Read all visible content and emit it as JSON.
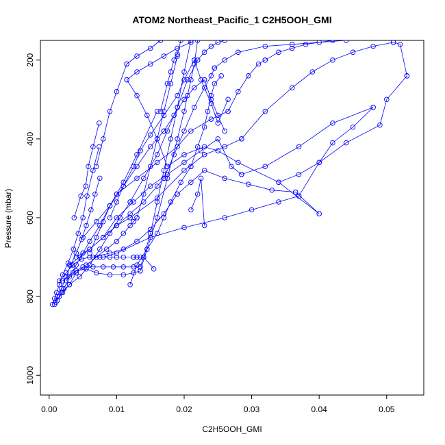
{
  "chart_data": {
    "type": "line",
    "title": "ATOM2 Northeast_Pacific_1 C2H5OOH_GMI",
    "xlabel": "C2H5OOH_GMI",
    "ylabel": "Pressure (mbar)",
    "xlim": [
      -0.0013,
      0.0555
    ],
    "ylim": [
      1050,
      150
    ],
    "y_inverted": true,
    "x_ticks": [
      0.0,
      0.01,
      0.02,
      0.03,
      0.04,
      0.05
    ],
    "x_tick_labels": [
      "0.00",
      "0.01",
      "0.02",
      "0.03",
      "0.04",
      "0.05"
    ],
    "y_ticks": [
      200,
      400,
      600,
      800,
      1000
    ],
    "y_tick_labels": [
      "200",
      "400",
      "600",
      "800",
      "1000"
    ],
    "series_color": "#0000ff",
    "marker": "open-circle",
    "grid": false,
    "legend": "none",
    "series": [
      {
        "x": [
          0.0005,
          0.0008,
          0.0011,
          0.0015,
          0.002,
          0.0028,
          0.0036,
          0.0043,
          0.005,
          0.0056,
          0.0065,
          0.0074
        ],
        "y": [
          820,
          805,
          790,
          770,
          745,
          715,
          680,
          640,
          600,
          545,
          480,
          420
        ]
      },
      {
        "x": [
          0.0074,
          0.0065,
          0.0058,
          0.0054,
          0.0047,
          0.0037
        ],
        "y": [
          360,
          420,
          470,
          520,
          545,
          600
        ]
      },
      {
        "x": [
          0.0008,
          0.0012,
          0.0018,
          0.0025,
          0.0032,
          0.004,
          0.0048,
          0.0055,
          0.0062,
          0.0068,
          0.0075
        ],
        "y": [
          820,
          800,
          780,
          750,
          720,
          690,
          655,
          620,
          580,
          540,
          500
        ]
      },
      {
        "x": [
          0.001,
          0.0015,
          0.0022,
          0.003,
          0.004,
          0.005,
          0.006,
          0.0075,
          0.009,
          0.011,
          0.013,
          0.016
        ],
        "y": [
          815,
          800,
          780,
          750,
          720,
          690,
          660,
          620,
          570,
          510,
          440,
          330
        ]
      },
      {
        "x": [
          0.0165,
          0.0175,
          0.018,
          0.0185,
          0.019,
          0.0195
        ],
        "y": [
          330,
          260,
          230,
          200,
          185,
          150
        ]
      },
      {
        "x": [
          0.0012,
          0.002,
          0.003,
          0.004,
          0.0055,
          0.007,
          0.0085,
          0.01,
          0.011,
          0.012,
          0.0125,
          0.013
        ],
        "y": [
          810,
          790,
          770,
          740,
          720,
          700,
          680,
          660,
          640,
          620,
          610,
          600
        ]
      },
      {
        "x": [
          0.013,
          0.014,
          0.015,
          0.016,
          0.017,
          0.018,
          0.019
        ],
        "y": [
          600,
          540,
          470,
          400,
          330,
          260,
          190
        ]
      },
      {
        "x": [
          0.0015,
          0.0025,
          0.0035,
          0.0048,
          0.006,
          0.0075,
          0.009,
          0.01,
          0.011,
          0.0125
        ],
        "y": [
          760,
          740,
          720,
          705,
          700,
          700,
          700,
          700,
          700,
          700
        ]
      },
      {
        "x": [
          0.0125,
          0.013,
          0.0135,
          0.014,
          0.0155
        ],
        "y": [
          700,
          700,
          700,
          700,
          730
        ]
      },
      {
        "x": [
          0.002,
          0.0035,
          0.005,
          0.0065,
          0.008,
          0.0095,
          0.011,
          0.0125,
          0.0135
        ],
        "y": [
          760,
          740,
          725,
          725,
          725,
          725,
          725,
          725,
          725
        ]
      },
      {
        "x": [
          0.0135,
          0.014,
          0.015,
          0.016,
          0.017,
          0.018,
          0.019,
          0.02,
          0.021
        ],
        "y": [
          725,
          700,
          640,
          560,
          480,
          400,
          320,
          230,
          150
        ]
      },
      {
        "x": [
          0.0025,
          0.004,
          0.0055,
          0.007,
          0.009,
          0.011,
          0.0125,
          0.0135
        ],
        "y": [
          760,
          735,
          730,
          740,
          745,
          745,
          740,
          735
        ]
      },
      {
        "x": [
          0.0135,
          0.0145,
          0.016,
          0.0175,
          0.019,
          0.02,
          0.0205,
          0.021,
          0.0215,
          0.022
        ],
        "y": [
          735,
          680,
          600,
          500,
          400,
          330,
          290,
          250,
          210,
          150
        ]
      },
      {
        "x": [
          0.0018,
          0.003,
          0.0045,
          0.006,
          0.0075,
          0.009,
          0.0105,
          0.012
        ],
        "y": [
          790,
          770,
          750,
          720,
          680,
          640,
          600,
          560
        ]
      },
      {
        "x": [
          0.012,
          0.014,
          0.016,
          0.0175,
          0.019,
          0.0205,
          0.022
        ],
        "y": [
          560,
          500,
          440,
          380,
          320,
          250,
          200
        ]
      },
      {
        "x": [
          0.022,
          0.023,
          0.024,
          0.025,
          0.026
        ],
        "y": [
          200,
          180,
          165,
          155,
          150
        ]
      },
      {
        "x": [
          0.003,
          0.0045,
          0.006,
          0.008,
          0.01,
          0.012,
          0.014,
          0.016,
          0.017
        ],
        "y": [
          720,
          700,
          680,
          650,
          620,
          590,
          560,
          520,
          500
        ]
      },
      {
        "x": [
          0.017,
          0.0185,
          0.02,
          0.0215,
          0.023,
          0.024,
          0.0245
        ],
        "y": [
          500,
          440,
          380,
          320,
          270,
          240,
          220
        ]
      },
      {
        "x": [
          0.0245,
          0.026,
          0.028,
          0.032,
          0.036,
          0.04,
          0.044
        ],
        "y": [
          220,
          200,
          180,
          165,
          160,
          155,
          150
        ]
      },
      {
        "x": [
          0.004,
          0.006,
          0.008,
          0.01,
          0.012
        ],
        "y": [
          700,
          680,
          650,
          620,
          600
        ]
      },
      {
        "x": [
          0.012,
          0.016,
          0.02,
          0.023,
          0.026,
          0.0285
        ],
        "y": [
          600,
          550,
          480,
          440,
          420,
          400
        ]
      },
      {
        "x": [
          0.0285,
          0.032,
          0.036,
          0.039,
          0.042,
          0.045,
          0.048,
          0.051
        ],
        "y": [
          400,
          330,
          270,
          230,
          200,
          180,
          165,
          155
        ]
      },
      {
        "x": [
          0.051,
          0.052,
          0.053
        ],
        "y": [
          155,
          160,
          240
        ]
      },
      {
        "x": [
          0.053,
          0.05,
          0.049,
          0.044,
          0.04,
          0.037
        ],
        "y": [
          240,
          300,
          365,
          410,
          460,
          545
        ]
      },
      {
        "x": [
          0.037,
          0.034,
          0.03,
          0.026,
          0.02,
          0.015,
          0.01,
          0.008
        ],
        "y": [
          545,
          560,
          580,
          600,
          625,
          650,
          690,
          700
        ]
      },
      {
        "x": [
          0.0065,
          0.009,
          0.011,
          0.013,
          0.015,
          0.017,
          0.019
        ],
        "y": [
          700,
          690,
          680,
          660,
          630,
          590,
          540
        ]
      },
      {
        "x": [
          0.019,
          0.021,
          0.023,
          0.026,
          0.0295,
          0.033,
          0.0365
        ],
        "y": [
          540,
          510,
          480,
          500,
          515,
          530,
          535
        ]
      },
      {
        "x": [
          0.0365,
          0.04
        ],
        "y": [
          535,
          590
        ]
      },
      {
        "x": [
          0.04,
          0.034,
          0.028,
          0.025,
          0.023,
          0.02,
          0.0175
        ],
        "y": [
          590,
          510,
          460,
          430,
          420,
          440,
          470
        ]
      },
      {
        "x": [
          0.0175,
          0.016,
          0.0145,
          0.013,
          0.0115
        ],
        "y": [
          470,
          400,
          340,
          290,
          250
        ]
      },
      {
        "x": [
          0.0115,
          0.013,
          0.015,
          0.017,
          0.019,
          0.021
        ],
        "y": [
          250,
          230,
          210,
          190,
          170,
          155
        ]
      },
      {
        "x": [
          0.005,
          0.007,
          0.009,
          0.011,
          0.013,
          0.015,
          0.017
        ],
        "y": [
          650,
          610,
          570,
          520,
          470,
          420,
          380
        ]
      },
      {
        "x": [
          0.017,
          0.0185,
          0.02,
          0.0215,
          0.023
        ],
        "y": [
          380,
          340,
          300,
          270,
          250
        ]
      },
      {
        "x": [
          0.023,
          0.024,
          0.025,
          0.026
        ],
        "y": [
          250,
          300,
          340,
          380
        ]
      },
      {
        "x": [
          0.008,
          0.01,
          0.0125,
          0.015,
          0.0175,
          0.02,
          0.0225,
          0.025,
          0.027,
          0.0285
        ],
        "y": [
          650,
          600,
          560,
          520,
          490,
          460,
          430,
          400,
          470,
          490
        ]
      },
      {
        "x": [
          0.0285,
          0.032,
          0.037,
          0.042,
          0.048
        ],
        "y": [
          490,
          470,
          420,
          360,
          320
        ]
      },
      {
        "x": [
          0.048,
          0.045,
          0.042,
          0.04,
          0.037,
          0.034
        ],
        "y": [
          320,
          370,
          410,
          460,
          490,
          510
        ]
      },
      {
        "x": [
          0.006,
          0.007,
          0.008,
          0.009,
          0.01
        ],
        "y": [
          690,
          650,
          610,
          570,
          540
        ]
      },
      {
        "x": [
          0.01,
          0.013,
          0.016,
          0.019,
          0.021,
          0.024,
          0.0265
        ],
        "y": [
          540,
          500,
          460,
          420,
          380,
          350,
          330
        ]
      },
      {
        "x": [
          0.0265,
          0.028,
          0.0295,
          0.031,
          0.032
        ],
        "y": [
          330,
          280,
          240,
          210,
          200
        ]
      },
      {
        "x": [
          0.032,
          0.034,
          0.036,
          0.038,
          0.042
        ],
        "y": [
          200,
          180,
          170,
          160,
          150
        ]
      },
      {
        "x": [
          0.007,
          0.008,
          0.009,
          0.01,
          0.0115
        ],
        "y": [
          470,
          400,
          330,
          280,
          210
        ]
      },
      {
        "x": [
          0.0115,
          0.013,
          0.015,
          0.0165
        ],
        "y": [
          210,
          190,
          170,
          150
        ]
      },
      {
        "x": [
          0.009,
          0.01,
          0.011,
          0.0125,
          0.0135
        ],
        "y": [
          600,
          560,
          520,
          470,
          430
        ]
      },
      {
        "x": [
          0.0135,
          0.015,
          0.017,
          0.019,
          0.02,
          0.0215
        ],
        "y": [
          430,
          390,
          340,
          290,
          250,
          200
        ]
      },
      {
        "x": [
          0.0215,
          0.0225,
          0.024,
          0.025,
          0.0265
        ],
        "y": [
          200,
          250,
          310,
          360,
          300
        ]
      },
      {
        "x": [
          0.012,
          0.013,
          0.0145,
          0.016,
          0.017,
          0.018,
          0.0195,
          0.021
        ],
        "y": [
          770,
          720,
          680,
          640,
          600,
          560,
          510,
          470
        ]
      },
      {
        "x": [
          0.021,
          0.022,
          0.023,
          0.0235,
          0.024,
          0.0245,
          0.0255
        ],
        "y": [
          470,
          420,
          370,
          330,
          290,
          260,
          240
        ]
      },
      {
        "x": [
          0.021,
          0.022,
          0.0225,
          0.023
        ],
        "y": [
          580,
          540,
          500,
          620
        ]
      }
    ]
  }
}
